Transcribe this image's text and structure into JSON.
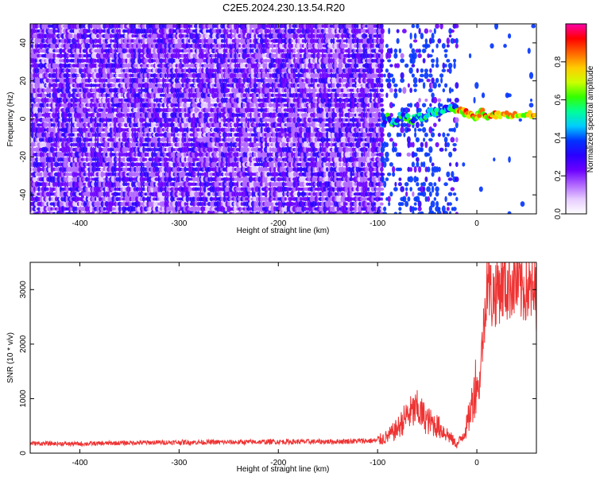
{
  "title": "C2E5.2024.230.13.54.R20",
  "colors": {
    "snr_line": "#ee3333",
    "colormap": [
      "#ffffff",
      "#e6ccff",
      "#b066ff",
      "#6a00ff",
      "#2a00ff",
      "#0033ff",
      "#00ccff",
      "#00ff99",
      "#33ff00",
      "#ccff00",
      "#ffcc00",
      "#ff6600",
      "#ff0000",
      "#ff00aa"
    ]
  },
  "chart_data": [
    {
      "type": "heatmap",
      "title": "",
      "xlabel": "Height of straight line (km)",
      "ylabel": "Frequency (Hz)",
      "xlim": [
        -450,
        60
      ],
      "ylim": [
        -50,
        50
      ],
      "xticks": [
        -400,
        -300,
        -200,
        -100,
        0
      ],
      "xtick_labels": [
        "-400",
        "-300",
        "-200",
        "-100",
        "0"
      ],
      "yticks": [
        -40,
        -20,
        0,
        20,
        40
      ],
      "ytick_labels": [
        "-40",
        "-20",
        "0",
        "20",
        "40"
      ],
      "colorbar": {
        "label": "Normalized spectral amplitude",
        "range": [
          0,
          1
        ],
        "ticks": [
          0,
          0.2,
          0.4,
          0.6,
          0.8
        ],
        "tick_labels": [
          "0.0",
          "0.2",
          "0.4",
          "0.6",
          "0.8"
        ]
      },
      "regions": [
        {
          "x_from": -450,
          "x_to": -95,
          "pattern": "broadband noise",
          "amplitude": 0.15
        },
        {
          "x_from": -95,
          "x_to": -20,
          "pattern": "sparse noise with a narrow line near 0 Hz",
          "amplitude": 0.3
        },
        {
          "x_from": -20,
          "x_to": 60,
          "pattern": "carrier line near 0 Hz",
          "amplitude": 0.75
        }
      ],
      "carrier_trace": [
        {
          "x": -95,
          "y": -2
        },
        {
          "x": -90,
          "y": 1
        },
        {
          "x": -85,
          "y": -3
        },
        {
          "x": -80,
          "y": 0
        },
        {
          "x": -75,
          "y": 2
        },
        {
          "x": -70,
          "y": 1
        },
        {
          "x": -65,
          "y": -1
        },
        {
          "x": -60,
          "y": 2
        },
        {
          "x": -55,
          "y": 0
        },
        {
          "x": -50,
          "y": 3
        },
        {
          "x": -45,
          "y": 4
        },
        {
          "x": -40,
          "y": 3
        },
        {
          "x": -35,
          "y": 5
        },
        {
          "x": -30,
          "y": 6
        },
        {
          "x": -25,
          "y": 5
        },
        {
          "x": -20,
          "y": 5
        },
        {
          "x": -15,
          "y": 4
        },
        {
          "x": -10,
          "y": 3
        },
        {
          "x": -5,
          "y": 1
        },
        {
          "x": 0,
          "y": 1
        },
        {
          "x": 5,
          "y": 4
        },
        {
          "x": 10,
          "y": 1
        },
        {
          "x": 15,
          "y": 2
        },
        {
          "x": 20,
          "y": 2
        },
        {
          "x": 30,
          "y": 2
        },
        {
          "x": 40,
          "y": 2
        },
        {
          "x": 50,
          "y": 2
        },
        {
          "x": 60,
          "y": 2
        }
      ]
    },
    {
      "type": "line",
      "title": "",
      "xlabel": "Height of straight line (km)",
      "ylabel": "SNR (10 * v/v)",
      "xlim": [
        -450,
        60
      ],
      "ylim": [
        0,
        3500
      ],
      "xticks": [
        -400,
        -300,
        -200,
        -100,
        0
      ],
      "xtick_labels": [
        "-400",
        "-300",
        "-200",
        "-100",
        "0"
      ],
      "yticks": [
        0,
        1000,
        2000,
        3000
      ],
      "ytick_labels": [
        "0",
        "1000",
        "2000",
        "3000"
      ],
      "series": [
        {
          "x": [
            -450,
            -400,
            -350,
            -300,
            -250,
            -200,
            -150,
            -100,
            -90,
            -80,
            -70,
            -60,
            -50,
            -40,
            -30,
            -20,
            -15,
            -10,
            -5,
            0,
            2,
            5,
            8,
            10,
            15,
            20,
            25,
            30,
            35,
            40,
            45,
            50,
            55,
            60
          ],
          "values": [
            180,
            170,
            190,
            200,
            200,
            210,
            210,
            230,
            300,
            450,
            700,
            800,
            600,
            500,
            350,
            150,
            300,
            500,
            900,
            1400,
            1100,
            1900,
            2500,
            3300,
            2850,
            3000,
            3100,
            3050,
            3150,
            3100,
            3000,
            3050,
            2950,
            2900
          ]
        }
      ]
    }
  ]
}
